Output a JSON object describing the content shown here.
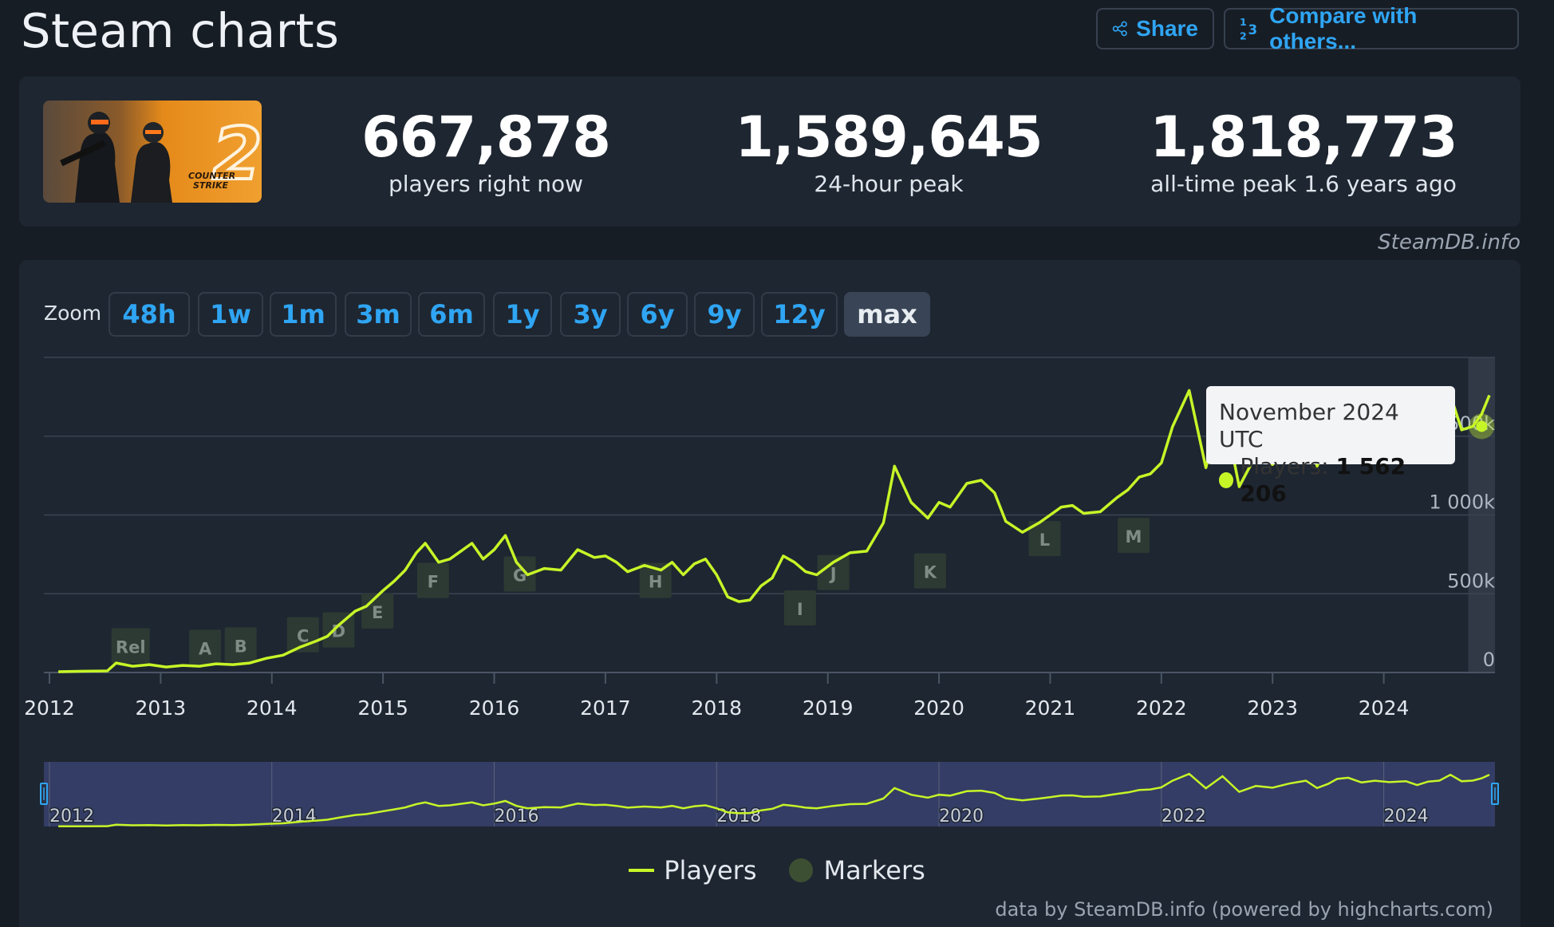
{
  "header": {
    "title": "Steam charts",
    "share_label": "Share",
    "compare_label": "Compare with others..."
  },
  "stats": {
    "current": {
      "value": "667,878",
      "label": "players right now"
    },
    "peak24": {
      "value": "1,589,645",
      "label": "24-hour peak"
    },
    "alltime": {
      "value": "1,818,773",
      "label": "all-time peak 1.6 years ago"
    }
  },
  "game_thumb": {
    "logo_text": "COUNTER STRIKE",
    "number": "2"
  },
  "credit_top": "SteamDB.info",
  "zoom": {
    "label": "Zoom",
    "buttons": [
      "48h",
      "1w",
      "1m",
      "3m",
      "6m",
      "1y",
      "3y",
      "6y",
      "9y",
      "12y",
      "max"
    ],
    "active": "max"
  },
  "tooltip": {
    "title": "November 2024 UTC",
    "series": "Players: ",
    "value": "1 562 206"
  },
  "legend": {
    "players": "Players",
    "markers": "Markers"
  },
  "credit_bottom": "data by SteamDB.info (powered by highcharts.com)",
  "colors": {
    "line": "#c6f527",
    "accent": "#2fa5f3",
    "bg": "#171d25",
    "panel": "#1e2631"
  },
  "chart_data": {
    "type": "line",
    "title": "",
    "xlabel": "",
    "ylabel": "",
    "x_ticks": [
      "2012",
      "2013",
      "2014",
      "2015",
      "2016",
      "2017",
      "2018",
      "2019",
      "2020",
      "2021",
      "2022",
      "2023",
      "2024"
    ],
    "y_ticks": [
      "0",
      "500k",
      "1 000k",
      "1 500k"
    ],
    "ylim": [
      0,
      2000000
    ],
    "navigator_ticks": [
      "2012",
      "2014",
      "2016",
      "2018",
      "2020",
      "2022",
      "2024"
    ],
    "series": [
      {
        "name": "Players",
        "x": [
          2012.08,
          2012.3,
          2012.52,
          2012.6,
          2012.75,
          2012.9,
          2013.05,
          2013.2,
          2013.35,
          2013.5,
          2013.65,
          2013.8,
          2013.95,
          2014.1,
          2014.25,
          2014.4,
          2014.5,
          2014.6,
          2014.75,
          2014.85,
          2015.0,
          2015.1,
          2015.2,
          2015.3,
          2015.38,
          2015.5,
          2015.6,
          2015.7,
          2015.8,
          2015.9,
          2016.0,
          2016.1,
          2016.2,
          2016.3,
          2016.45,
          2016.6,
          2016.75,
          2016.9,
          2017.0,
          2017.1,
          2017.2,
          2017.35,
          2017.5,
          2017.6,
          2017.7,
          2017.8,
          2017.9,
          2018.0,
          2018.1,
          2018.2,
          2018.3,
          2018.4,
          2018.5,
          2018.6,
          2018.7,
          2018.8,
          2018.9,
          2019.05,
          2019.2,
          2019.35,
          2019.5,
          2019.6,
          2019.75,
          2019.9,
          2020.0,
          2020.1,
          2020.25,
          2020.38,
          2020.5,
          2020.6,
          2020.75,
          2020.9,
          2021.0,
          2021.1,
          2021.2,
          2021.3,
          2021.45,
          2021.6,
          2021.7,
          2021.8,
          2021.9,
          2022.0,
          2022.1,
          2022.25,
          2022.4,
          2022.55,
          2022.7,
          2022.85,
          2023.0,
          2023.15,
          2023.3,
          2023.4,
          2023.5,
          2023.58,
          2023.68,
          2023.8,
          2023.92,
          2024.05,
          2024.2,
          2024.3,
          2024.4,
          2024.5,
          2024.6,
          2024.7,
          2024.8,
          2024.88,
          2024.95
        ],
        "values": [
          5000,
          8000,
          10000,
          60000,
          40000,
          50000,
          35000,
          45000,
          40000,
          55000,
          50000,
          60000,
          90000,
          110000,
          160000,
          200000,
          230000,
          300000,
          390000,
          420000,
          520000,
          580000,
          650000,
          760000,
          820000,
          700000,
          720000,
          770000,
          820000,
          720000,
          780000,
          870000,
          700000,
          620000,
          660000,
          650000,
          780000,
          730000,
          740000,
          700000,
          640000,
          680000,
          650000,
          700000,
          620000,
          690000,
          720000,
          620000,
          480000,
          450000,
          460000,
          550000,
          600000,
          740000,
          700000,
          640000,
          620000,
          700000,
          760000,
          770000,
          950000,
          1310000,
          1080000,
          980000,
          1080000,
          1050000,
          1200000,
          1220000,
          1140000,
          960000,
          890000,
          950000,
          1000000,
          1050000,
          1060000,
          1010000,
          1020000,
          1110000,
          1160000,
          1240000,
          1260000,
          1330000,
          1560000,
          1790000,
          1300000,
          1710000,
          1180000,
          1380000,
          1320000,
          1460000,
          1560000,
          1310000,
          1450000,
          1620000,
          1660000,
          1500000,
          1560000,
          1510000,
          1540000,
          1410000,
          1530000,
          1562206,
          1760000,
          1540000,
          1562206,
          1640000,
          1760000
        ]
      }
    ],
    "markers": [
      "Rel",
      "A",
      "B",
      "C",
      "D",
      "E",
      "F",
      "G",
      "H",
      "I",
      "J",
      "K",
      "L",
      "M"
    ]
  }
}
